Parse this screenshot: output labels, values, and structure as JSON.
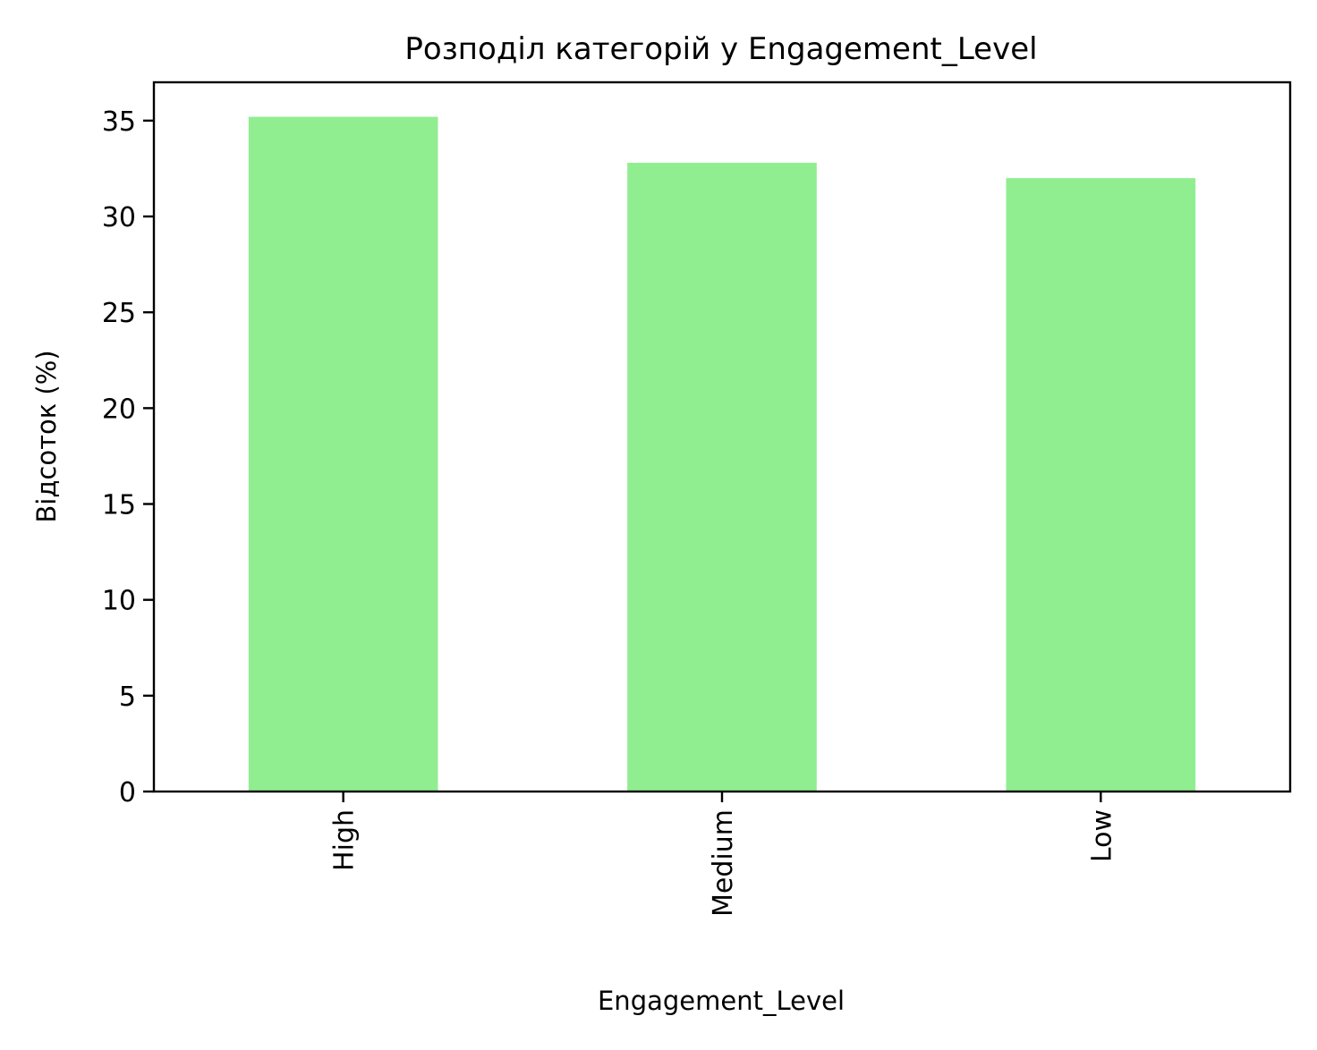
{
  "chart_data": {
    "type": "bar",
    "title": "Розподіл категорій у Engagement_Level",
    "xlabel": "Engagement_Level",
    "ylabel": "Відсоток (%)",
    "categories": [
      "High",
      "Medium",
      "Low"
    ],
    "values": [
      35.2,
      32.8,
      32.0
    ],
    "ylim": [
      0,
      37
    ],
    "yticks": [
      0,
      5,
      10,
      15,
      20,
      25,
      30,
      35
    ],
    "bar_color": "#90ee90",
    "grid": false,
    "legend": "none",
    "xtick_rotation": "vertical"
  }
}
